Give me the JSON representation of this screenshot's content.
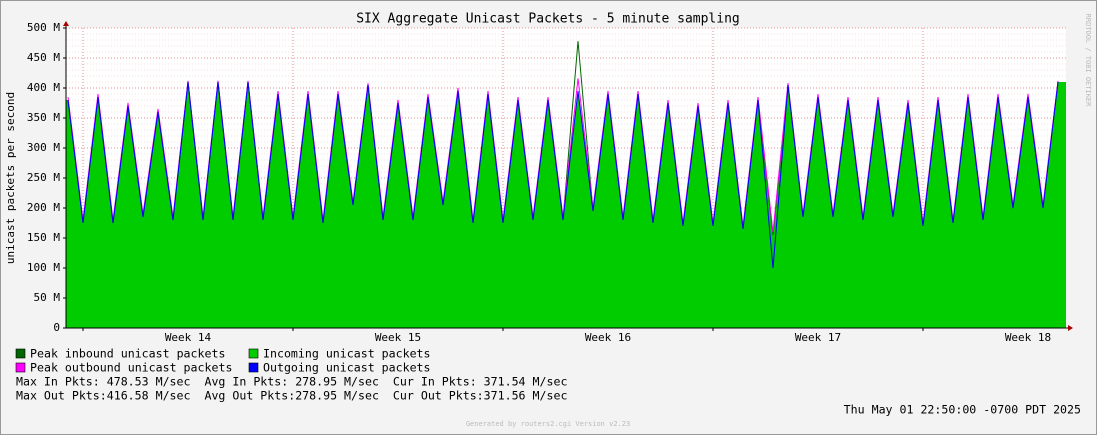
{
  "chart_data": {
    "type": "line",
    "title": "SIX Aggregate Unicast Packets - 5 minute sampling",
    "y_label": "unicast packets per second",
    "categories": [
      null,
      null,
      null,
      null,
      null,
      null,
      null,
      null,
      "Week 14",
      null,
      null,
      null,
      null,
      null,
      null,
      null,
      null,
      null,
      null,
      null,
      null,
      null,
      "Week 15",
      null,
      null,
      null,
      null,
      null,
      null,
      null,
      null,
      null,
      null,
      null,
      null,
      null,
      "Week 16",
      null,
      null,
      null,
      null,
      null,
      null,
      null,
      null,
      null,
      null,
      null,
      null,
      null,
      "Week 17",
      null,
      null,
      null,
      null,
      null,
      null,
      null,
      null,
      null,
      null,
      null,
      null,
      null,
      "Week 18",
      null,
      null
    ],
    "series": [
      {
        "name": "Peak inbound unicast packets",
        "color": "#006600",
        "style": "line",
        "values": [
          380,
          175,
          385,
          175,
          370,
          185,
          360,
          180,
          410,
          180,
          410,
          180,
          410,
          180,
          390,
          180,
          390,
          175,
          390,
          205,
          405,
          180,
          375,
          180,
          385,
          205,
          395,
          175,
          390,
          175,
          380,
          180,
          380,
          180,
          478,
          195,
          390,
          180,
          390,
          175,
          375,
          170,
          370,
          170,
          375,
          165,
          380,
          155,
          405,
          185,
          385,
          185,
          380,
          180,
          380,
          185,
          375,
          170,
          380,
          175,
          385,
          180,
          385,
          200,
          385,
          200,
          410
        ]
      },
      {
        "name": "Incoming unicast packets",
        "color": "#00cc00",
        "style": "area",
        "values": [
          380,
          175,
          385,
          175,
          370,
          185,
          360,
          180,
          410,
          180,
          410,
          180,
          410,
          180,
          390,
          180,
          390,
          175,
          390,
          205,
          405,
          180,
          375,
          180,
          385,
          205,
          395,
          175,
          390,
          175,
          380,
          180,
          380,
          180,
          395,
          195,
          390,
          180,
          390,
          175,
          375,
          170,
          370,
          170,
          375,
          165,
          380,
          155,
          405,
          185,
          385,
          185,
          380,
          180,
          380,
          185,
          375,
          170,
          380,
          175,
          385,
          180,
          385,
          200,
          385,
          200,
          410
        ]
      },
      {
        "name": "Peak outbound unicast packets",
        "color": "#ff00ff",
        "style": "line",
        "values": [
          385,
          180,
          390,
          180,
          375,
          190,
          365,
          185,
          412,
          185,
          412,
          185,
          412,
          185,
          395,
          185,
          395,
          180,
          395,
          210,
          408,
          185,
          380,
          185,
          390,
          210,
          400,
          180,
          395,
          180,
          385,
          185,
          385,
          185,
          416,
          200,
          395,
          185,
          395,
          180,
          380,
          175,
          375,
          175,
          380,
          170,
          385,
          160,
          408,
          190,
          390,
          190,
          385,
          185,
          385,
          190,
          380,
          175,
          385,
          180,
          390,
          185,
          390,
          205,
          390,
          205,
          412
        ]
      },
      {
        "name": "Outgoing unicast packets",
        "color": "#0000ff",
        "style": "line",
        "values": [
          380,
          175,
          385,
          175,
          370,
          185,
          360,
          180,
          410,
          180,
          410,
          180,
          410,
          180,
          390,
          180,
          390,
          175,
          390,
          205,
          405,
          180,
          375,
          180,
          385,
          205,
          395,
          175,
          390,
          175,
          380,
          180,
          380,
          180,
          395,
          195,
          390,
          180,
          390,
          175,
          375,
          170,
          370,
          170,
          375,
          165,
          380,
          100,
          405,
          185,
          385,
          185,
          380,
          180,
          380,
          185,
          375,
          170,
          380,
          175,
          385,
          180,
          385,
          200,
          385,
          200,
          410
        ]
      }
    ],
    "ylim": [
      0,
      500
    ],
    "yticks": [
      0,
      {
        "value": 50,
        "label": "50 M"
      },
      {
        "value": 100,
        "label": "100 M"
      },
      {
        "value": 150,
        "label": "150 M"
      },
      {
        "value": 200,
        "label": "200 M"
      },
      {
        "value": 250,
        "label": "250 M"
      },
      {
        "value": 300,
        "label": "300 M"
      },
      {
        "value": 350,
        "label": "350 M"
      },
      {
        "value": 400,
        "label": "400 M"
      },
      {
        "value": 450,
        "label": "450 M"
      },
      {
        "value": 500,
        "label": "500 M"
      }
    ],
    "grid": true,
    "stats": [
      "Max In Pkts: 478.53 M/sec  Avg In Pkts: 278.95 M/sec  Cur In Pkts: 371.54 M/sec",
      "Max Out Pkts:416.58 M/sec  Avg Out Pkts:278.95 M/sec  Cur Out Pkts:371.56 M/sec"
    ],
    "timestamp": "Thu May 01 22:50:00 -0700 PDT 2025",
    "footer": "Generated by routers2.cgi Version v2.23",
    "watermark": "RRDTOOL / TOBI OETIKER"
  }
}
